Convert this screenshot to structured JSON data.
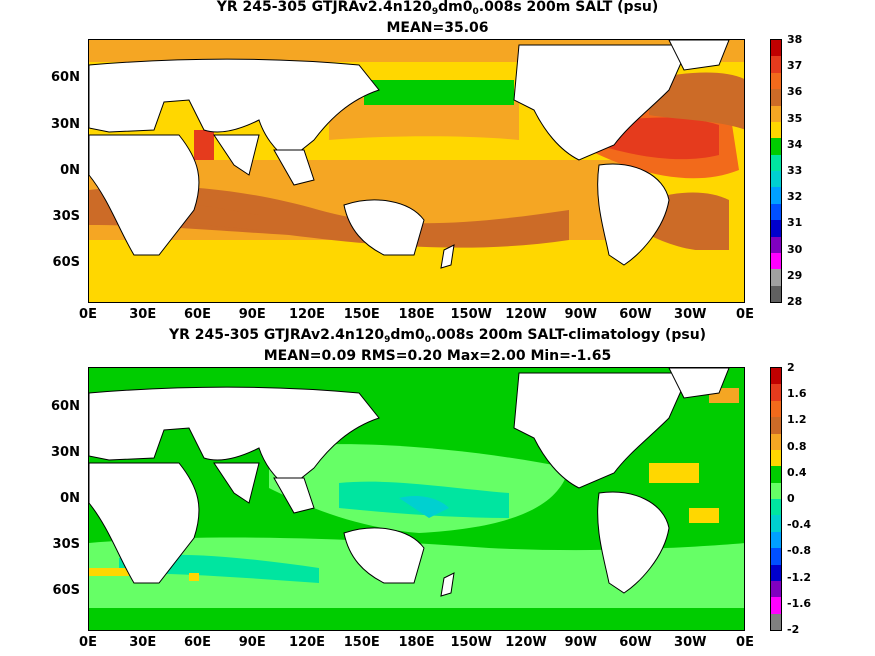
{
  "panels": [
    {
      "title_pre": "YR 245-305 GTJRAv2.4n120",
      "title_sub1": "9",
      "title_mid": "dm0",
      "title_sub2": "0",
      "title_post": ".008s 200m SALT (psu)",
      "stats": "MEAN=35.06",
      "colorbar": {
        "labels": [
          "38",
          "37",
          "36",
          "35",
          "34",
          "33",
          "32",
          "31",
          "30",
          "29",
          "28"
        ],
        "colors": [
          "#c00000",
          "#e53b1d",
          "#f26a1b",
          "#cc6b27",
          "#f5a623",
          "#ffd700",
          "#00cc00",
          "#00e5a0",
          "#00d0d0",
          "#00a0ff",
          "#0050ff",
          "#0000cc",
          "#8000c0",
          "#ff00ff",
          "#a0a0a0",
          "#606060"
        ]
      },
      "chart_data": {
        "type": "heatmap",
        "title": "YR 245-305 GTJRAv2.4n120 9 dm0 0 .008s 200m SALT (psu)",
        "field": "SALT at 200m (psu)",
        "mean": 35.06,
        "crange": [
          28,
          38
        ],
        "colorbar_ticks": [
          28,
          29,
          30,
          31,
          32,
          33,
          34,
          35,
          36,
          37,
          38
        ]
      }
    },
    {
      "title_pre": "YR 245-305 GTJRAv2.4n120",
      "title_sub1": "9",
      "title_mid": "dm0",
      "title_sub2": "0",
      "title_post": ".008s 200m SALT-climatology (psu)",
      "stats": "MEAN=0.09   RMS=0.20   Max=2.00   Min=-1.65",
      "colorbar": {
        "labels": [
          "2",
          "1.6",
          "1.2",
          "0.8",
          "0.4",
          "0",
          "-0.4",
          "-0.8",
          "-1.2",
          "-1.6",
          "-2"
        ],
        "colors": [
          "#c00000",
          "#e53b1d",
          "#f26a1b",
          "#cc6b27",
          "#f5a623",
          "#ffd700",
          "#00cc00",
          "#66ff66",
          "#00e5a0",
          "#00d0d0",
          "#00a0ff",
          "#0050ff",
          "#0000cc",
          "#8000c0",
          "#ff00ff",
          "#808080"
        ]
      },
      "chart_data": {
        "type": "heatmap",
        "title": "YR 245-305 GTJRAv2.4n120 9 dm0 0 .008s 200m SALT-climatology (psu)",
        "field": "SALT-climatology at 200m (psu)",
        "mean": 0.09,
        "rms": 0.2,
        "max": 2.0,
        "min": -1.65,
        "crange": [
          -2,
          2
        ],
        "colorbar_ticks": [
          -2,
          -1.6,
          -1.2,
          -0.8,
          -0.4,
          0,
          0.4,
          0.8,
          1.2,
          1.6,
          2
        ]
      }
    }
  ],
  "axes": {
    "lat_labels": [
      "60N",
      "30N",
      "0N",
      "30S",
      "60S"
    ],
    "lon_labels": [
      "0E",
      "30E",
      "60E",
      "90E",
      "120E",
      "150E",
      "180E",
      "150W",
      "120W",
      "90W",
      "60W",
      "30W",
      "0E"
    ]
  }
}
